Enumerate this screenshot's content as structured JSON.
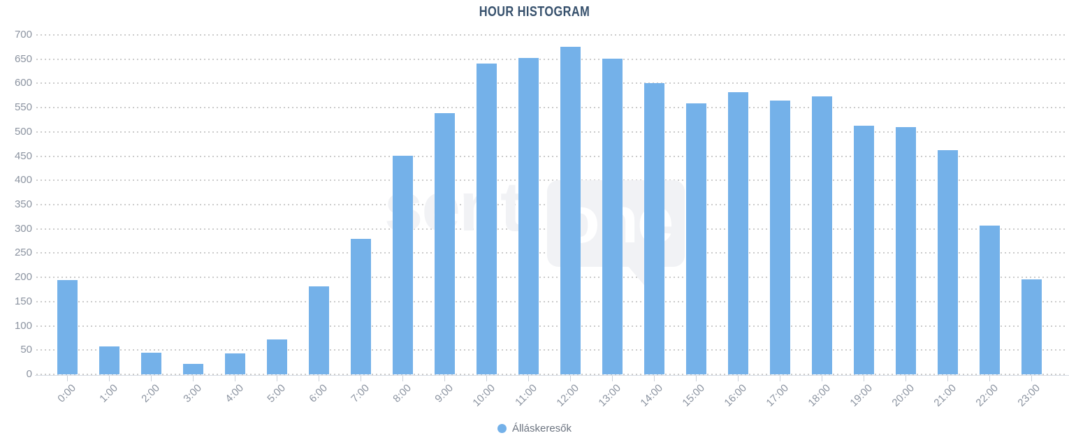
{
  "title": "HOUR HISTOGRAM",
  "watermark": {
    "text": "senti",
    "bubble_text": "one"
  },
  "legend": {
    "label": "Álláskeresők",
    "marker_color": "#74b1e9"
  },
  "colors": {
    "bar": "#74b1e9",
    "title_text": "#36506c",
    "axis_label_text": "#8b93a0",
    "gridline": "#cbcbcb",
    "axis_line": "#d5dbe3",
    "legend_text": "#6c7480",
    "watermark": "#f1f2f5"
  },
  "chart_data": {
    "type": "bar",
    "title": "HOUR HISTOGRAM",
    "categories": [
      "0:00",
      "1:00",
      "2:00",
      "3:00",
      "4:00",
      "5:00",
      "6:00",
      "7:00",
      "8:00",
      "9:00",
      "10:00",
      "11:00",
      "12:00",
      "13:00",
      "14:00",
      "15:00",
      "16:00",
      "17:00",
      "18:00",
      "19:00",
      "20:00",
      "21:00",
      "22:00",
      "23:00"
    ],
    "series": [
      {
        "name": "Álláskeresők",
        "color": "#74b1e9",
        "values": [
          195,
          57,
          45,
          21,
          43,
          72,
          182,
          280,
          451,
          539,
          641,
          652,
          676,
          651,
          600,
          559,
          582,
          564,
          573,
          513,
          510,
          462,
          307,
          196
        ]
      }
    ],
    "xlabel": "",
    "ylabel": "",
    "ylim": [
      0,
      700
    ],
    "ytick_step": 50,
    "grid": "horizontal-dotted",
    "legend_position": "bottom-center",
    "x_tick_rotation": -45
  }
}
